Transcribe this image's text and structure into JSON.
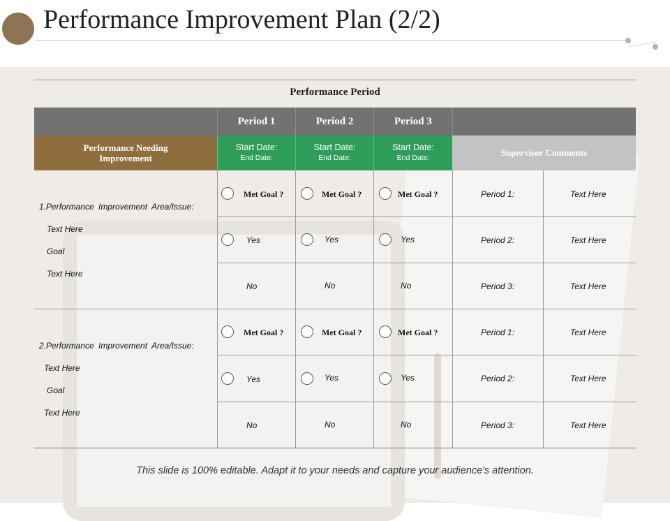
{
  "title": "Performance Improvement Plan (2/2)",
  "table": {
    "caption": "Performance Period",
    "periods": [
      "Period 1",
      "Period 2",
      "Period 3"
    ],
    "row_header": "Performance Needing Improvement",
    "start_date_label": "Start Date:",
    "end_date_label": "End Date:",
    "comments_header": "Supervisor Comments",
    "met_goal_label": "Met Goal ?",
    "yes_label": "Yes",
    "no_label": "No",
    "sections": [
      {
        "area": "1.Performance Improvement Area/Issue:",
        "items": [
          "Text Here",
          "Goal",
          "Text Here"
        ],
        "comments": [
          {
            "period": "Period 1:",
            "text": "Text Here"
          },
          {
            "period": "Period 2:",
            "text": "Text Here"
          },
          {
            "period": "Period 3:",
            "text": "Text Here"
          }
        ]
      },
      {
        "area": "2.Performance Improvement Area/Issue:",
        "items": [
          "Text Here",
          "Goal",
          "Text Here"
        ],
        "comments": [
          {
            "period": "Period 1:",
            "text": "Text Here"
          },
          {
            "period": "Period 2:",
            "text": "Text Here"
          },
          {
            "period": "Period 3:",
            "text": "Text Here"
          }
        ]
      }
    ]
  },
  "footer": "This slide is 100% editable. Adapt it to your needs and capture your audience's attention.",
  "colors": {
    "header_gray": "#727272",
    "brown": "#8e6e3c",
    "green": "#2f9d5a",
    "light_gray": "#c3c3c3",
    "logo": "#8d7452"
  }
}
